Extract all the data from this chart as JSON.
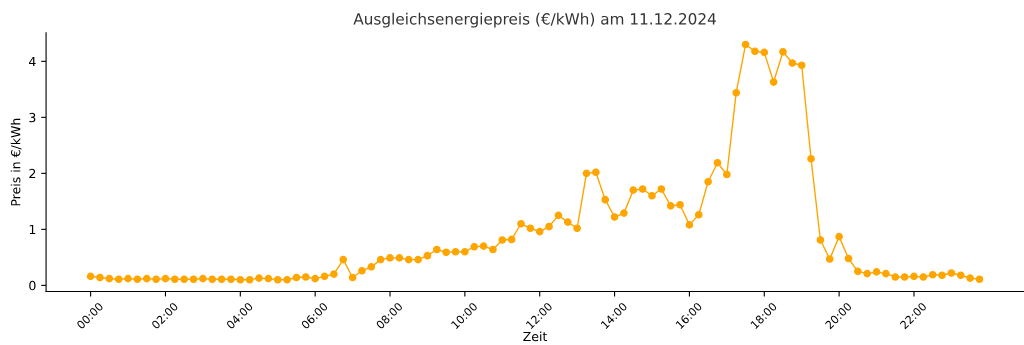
{
  "chart_data": {
    "type": "line",
    "title": "Ausgleichsenergiepreis (€/kWh) am 11.12.2024",
    "xlabel": "Zeit",
    "ylabel": "Preis in €/kWh",
    "x": [
      0,
      0.25,
      0.5,
      0.75,
      1,
      1.25,
      1.5,
      1.75,
      2,
      2.25,
      2.5,
      2.75,
      3,
      3.25,
      3.5,
      3.75,
      4,
      4.25,
      4.5,
      4.75,
      5,
      5.25,
      5.5,
      5.75,
      6,
      6.25,
      6.5,
      6.75,
      7,
      7.25,
      7.5,
      7.75,
      8,
      8.25,
      8.5,
      8.75,
      9,
      9.25,
      9.5,
      9.75,
      10,
      10.25,
      10.5,
      10.75,
      11,
      11.25,
      11.5,
      11.75,
      12,
      12.25,
      12.5,
      12.75,
      13,
      13.25,
      13.5,
      13.75,
      14,
      14.25,
      14.5,
      14.75,
      15,
      15.25,
      15.5,
      15.75,
      16,
      16.25,
      16.5,
      16.75,
      17,
      17.25,
      17.5,
      17.75,
      18,
      18.25,
      18.5,
      18.75,
      19,
      19.25,
      19.5,
      19.75,
      20,
      20.25,
      20.5,
      20.75,
      21,
      21.25,
      21.5,
      21.75,
      22,
      22.25,
      22.5,
      22.75,
      23,
      23.25,
      23.5,
      23.75
    ],
    "series": [
      {
        "color": "#ffa500",
        "values": [
          0.16,
          0.14,
          0.12,
          0.11,
          0.12,
          0.11,
          0.12,
          0.11,
          0.12,
          0.11,
          0.11,
          0.11,
          0.12,
          0.11,
          0.11,
          0.11,
          0.1,
          0.1,
          0.13,
          0.12,
          0.1,
          0.1,
          0.14,
          0.15,
          0.12,
          0.16,
          0.2,
          0.46,
          0.14,
          0.26,
          0.33,
          0.46,
          0.49,
          0.49,
          0.46,
          0.46,
          0.53,
          0.64,
          0.59,
          0.6,
          0.6,
          0.69,
          0.7,
          0.64,
          0.81,
          0.82,
          1.1,
          1.02,
          0.96,
          1.05,
          1.25,
          1.13,
          1.02,
          2.0,
          2.02,
          1.53,
          1.22,
          1.29,
          1.7,
          1.72,
          1.6,
          1.72,
          1.42,
          1.44,
          1.08,
          1.26,
          1.85,
          2.19,
          1.98,
          3.44,
          4.3,
          4.18,
          4.16,
          3.63,
          4.17,
          3.97,
          3.93,
          2.26,
          0.81,
          0.47,
          0.87,
          0.48,
          0.25,
          0.21,
          0.24,
          0.21,
          0.15,
          0.15,
          0.16,
          0.15,
          0.19,
          0.18,
          0.22,
          0.18,
          0.13,
          0.11
        ]
      }
    ],
    "xlim": [
      -1.19,
      24.94
    ],
    "ylim": [
      -0.11,
      4.51
    ],
    "xticks": [
      {
        "value": 0,
        "label": "00:00"
      },
      {
        "value": 2,
        "label": "02:00"
      },
      {
        "value": 4,
        "label": "04:00"
      },
      {
        "value": 6,
        "label": "06:00"
      },
      {
        "value": 8,
        "label": "08:00"
      },
      {
        "value": 10,
        "label": "10:00"
      },
      {
        "value": 12,
        "label": "12:00"
      },
      {
        "value": 14,
        "label": "14:00"
      },
      {
        "value": 16,
        "label": "16:00"
      },
      {
        "value": 18,
        "label": "18:00"
      },
      {
        "value": 20,
        "label": "20:00"
      },
      {
        "value": 22,
        "label": "22:00"
      }
    ],
    "yticks": [
      0,
      1,
      2,
      3,
      4
    ],
    "grid": false,
    "legend": false,
    "marker": "circle",
    "line_style": "solid"
  }
}
